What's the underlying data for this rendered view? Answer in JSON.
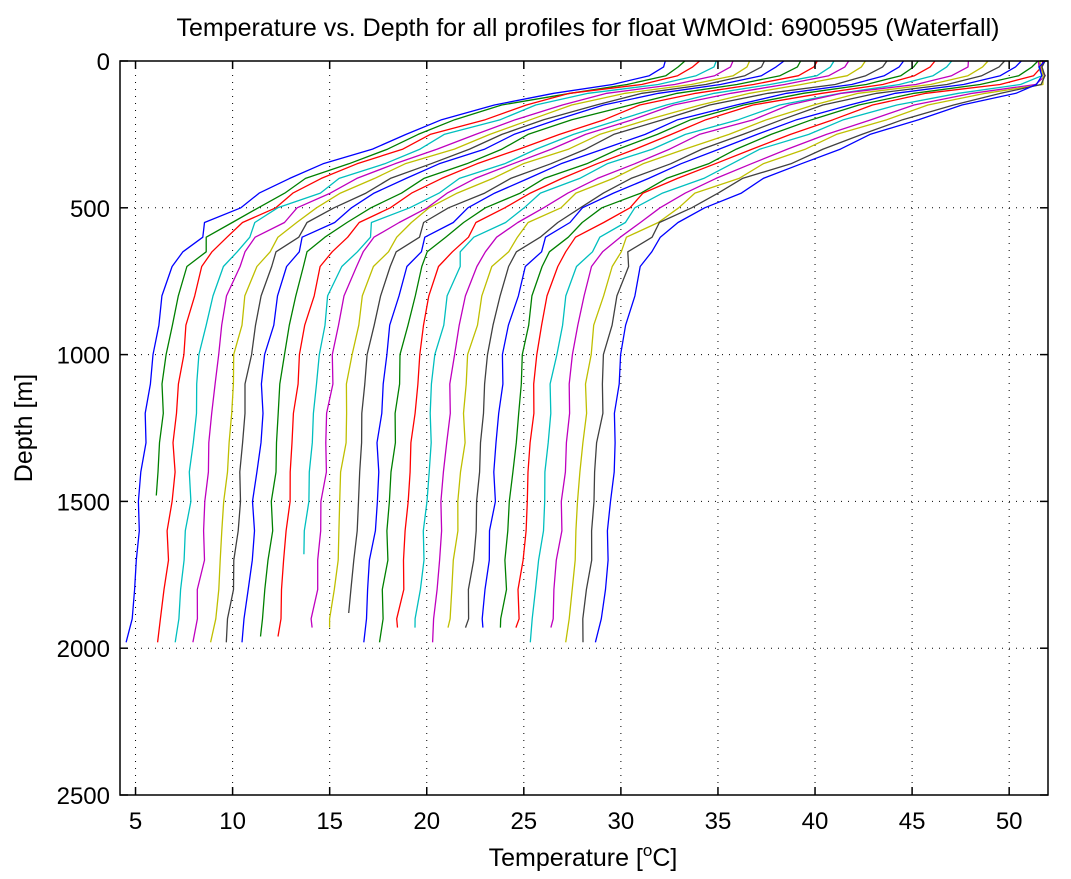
{
  "chart_data": {
    "type": "line",
    "title": "Temperature vs. Depth for all profiles for float WMOId: 6900595 (Waterfall)",
    "xlabel_prefix": "Temperature [",
    "xlabel_sup": "o",
    "xlabel_suffix": "C]",
    "ylabel": "Depth [m]",
    "xlim": [
      4.2,
      52
    ],
    "ylim": [
      0,
      2500
    ],
    "y_reversed": true,
    "grid": true,
    "xticks": [
      5,
      10,
      15,
      20,
      25,
      30,
      35,
      40,
      45,
      50
    ],
    "yticks": [
      0,
      500,
      1000,
      1500,
      2000,
      2500
    ],
    "colors": [
      "#0000ff",
      "#008000",
      "#ff0000",
      "#00bfbf",
      "#bf00bf",
      "#bfbf00",
      "#404040"
    ],
    "profile_shape": {
      "depths": [
        0,
        20,
        50,
        80,
        110,
        150,
        200,
        250,
        300,
        350,
        400,
        450,
        500,
        550,
        600,
        650,
        700,
        800,
        900,
        1000,
        1100,
        1200,
        1300,
        1400,
        1500,
        1600,
        1700,
        1800,
        1900,
        1980
      ],
      "offsets": [
        27.2,
        27.0,
        26.2,
        24.2,
        21.0,
        18.2,
        15.8,
        13.6,
        11.6,
        9.8,
        8.0,
        6.4,
        5.0,
        3.8,
        2.9,
        2.2,
        1.7,
        1.2,
        0.9,
        0.6,
        0.45,
        0.35,
        0.25,
        0.15,
        0.05,
        -0.05,
        -0.15,
        -0.3,
        -0.45,
        -0.6
      ]
    },
    "series": [
      {
        "base": 5.2,
        "max_depth": 1980
      },
      {
        "base": 6.0,
        "max_depth": 1480
      },
      {
        "base": 6.8,
        "max_depth": 1980
      },
      {
        "base": 7.7,
        "max_depth": 1980
      },
      {
        "base": 8.6,
        "max_depth": 1980
      },
      {
        "base": 9.5,
        "max_depth": 1980
      },
      {
        "base": 10.3,
        "max_depth": 1980
      },
      {
        "base": 11.1,
        "max_depth": 1980
      },
      {
        "base": 12.0,
        "max_depth": 1960
      },
      {
        "base": 12.9,
        "max_depth": 1960
      },
      {
        "base": 13.8,
        "max_depth": 1680
      },
      {
        "base": 14.6,
        "max_depth": 1930
      },
      {
        "base": 15.5,
        "max_depth": 1930
      },
      {
        "base": 16.4,
        "max_depth": 1880
      },
      {
        "base": 17.3,
        "max_depth": 1980
      },
      {
        "base": 18.1,
        "max_depth": 1980
      },
      {
        "base": 19.0,
        "max_depth": 1930
      },
      {
        "base": 19.9,
        "max_depth": 1930
      },
      {
        "base": 20.8,
        "max_depth": 1980
      },
      {
        "base": 21.6,
        "max_depth": 1930
      },
      {
        "base": 22.5,
        "max_depth": 1930
      },
      {
        "base": 23.4,
        "max_depth": 1930
      },
      {
        "base": 24.3,
        "max_depth": 1930
      },
      {
        "base": 25.1,
        "max_depth": 1930
      },
      {
        "base": 26.0,
        "max_depth": 1980
      },
      {
        "base": 26.9,
        "max_depth": 1930
      },
      {
        "base": 27.8,
        "max_depth": 1980
      },
      {
        "base": 28.6,
        "max_depth": 1980
      },
      {
        "base": 29.4,
        "max_depth": 1980
      }
    ]
  }
}
